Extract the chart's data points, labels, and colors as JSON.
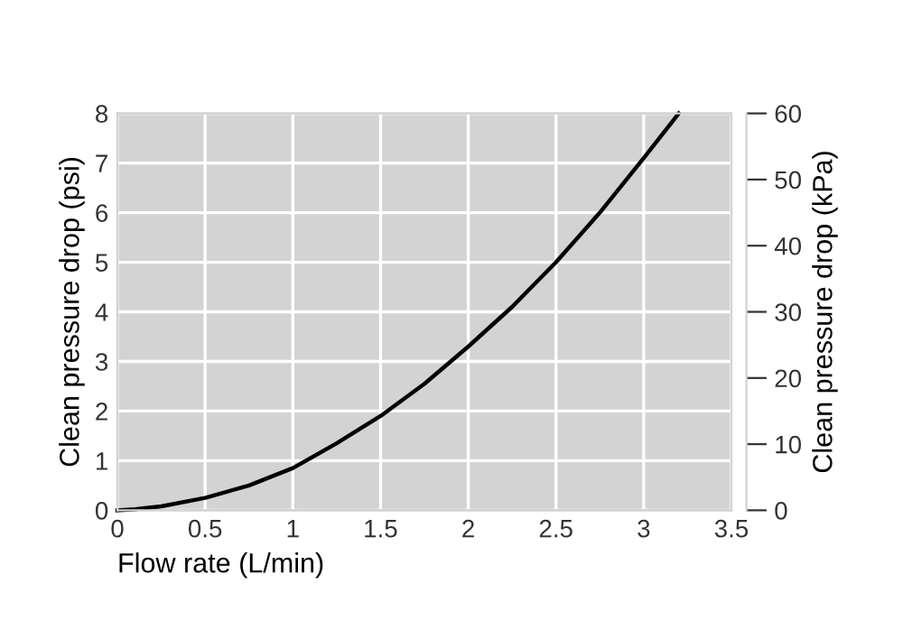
{
  "chart_data": {
    "type": "line",
    "xlabel": "Flow rate (L/min)",
    "ylabel": "Clean pressure drop (psi)",
    "y2label": "Clean pressure drop (kPa)",
    "x": [
      0,
      0.1,
      0.25,
      0.5,
      0.75,
      1,
      1.25,
      1.5,
      1.75,
      2,
      2.25,
      2.5,
      2.75,
      3,
      3.2
    ],
    "series": [
      {
        "color": "#000000",
        "values": [
          0,
          0.02,
          0.08,
          0.25,
          0.5,
          0.85,
          1.35,
          1.9,
          2.55,
          3.3,
          4.1,
          5.0,
          6.0,
          7.1,
          8.0
        ]
      }
    ],
    "xlim": [
      0,
      3.5
    ],
    "xticks": [
      0,
      0.5,
      1,
      1.5,
      2,
      2.5,
      3,
      3.5
    ],
    "ylim": [
      0,
      8
    ],
    "yticks": [
      0,
      1,
      2,
      3,
      4,
      5,
      6,
      7,
      8
    ],
    "y2lim": [
      0,
      60
    ],
    "y2ticks": [
      0,
      10,
      20,
      30,
      40,
      50,
      60
    ],
    "grid": true,
    "legend": false,
    "marker": "none",
    "line_style": "solid"
  }
}
